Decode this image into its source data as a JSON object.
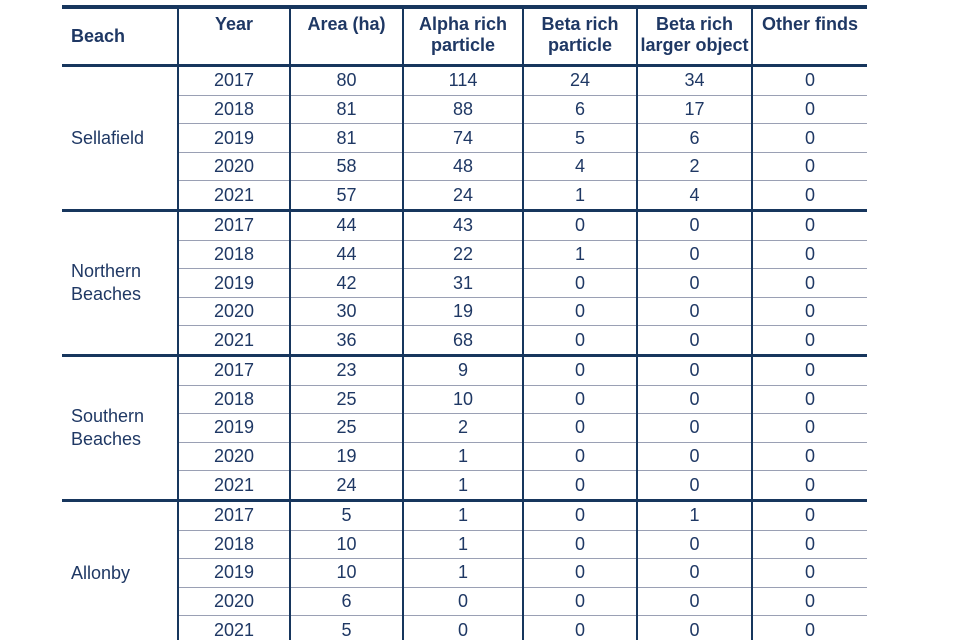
{
  "page": {
    "background": "#ffffff"
  },
  "colors": {
    "navy_border": "#17365d",
    "text_navy": "#1f3864",
    "row_separator": "#9aa0b4"
  },
  "table": {
    "columns": [
      "Beach",
      "Year",
      "Area (ha)",
      "Alpha rich particle",
      "Beta rich particle",
      "Beta rich larger object",
      "Other finds"
    ],
    "column_keys": [
      "beach",
      "year",
      "area-ha",
      "alpha-rich-particle",
      "beta-rich-particle",
      "beta-rich-larger-object",
      "other-finds"
    ],
    "groups": [
      {
        "beach": "Sellafield",
        "rows": [
          [
            "2017",
            "80",
            "114",
            "24",
            "34",
            "0"
          ],
          [
            "2018",
            "81",
            "88",
            "6",
            "17",
            "0"
          ],
          [
            "2019",
            "81",
            "74",
            "5",
            "6",
            "0"
          ],
          [
            "2020",
            "58",
            "48",
            "4",
            "2",
            "0"
          ],
          [
            "2021",
            "57",
            "24",
            "1",
            "4",
            "0"
          ]
        ]
      },
      {
        "beach": "Northern Beaches",
        "rows": [
          [
            "2017",
            "44",
            "43",
            "0",
            "0",
            "0"
          ],
          [
            "2018",
            "44",
            "22",
            "1",
            "0",
            "0"
          ],
          [
            "2019",
            "42",
            "31",
            "0",
            "0",
            "0"
          ],
          [
            "2020",
            "30",
            "19",
            "0",
            "0",
            "0"
          ],
          [
            "2021",
            "36",
            "68",
            "0",
            "0",
            "0"
          ]
        ]
      },
      {
        "beach": "Southern Beaches",
        "rows": [
          [
            "2017",
            "23",
            "9",
            "0",
            "0",
            "0"
          ],
          [
            "2018",
            "25",
            "10",
            "0",
            "0",
            "0"
          ],
          [
            "2019",
            "25",
            "2",
            "0",
            "0",
            "0"
          ],
          [
            "2020",
            "19",
            "1",
            "0",
            "0",
            "0"
          ],
          [
            "2021",
            "24",
            "1",
            "0",
            "0",
            "0"
          ]
        ]
      },
      {
        "beach": "Allonby",
        "rows": [
          [
            "2017",
            "5",
            "1",
            "0",
            "1",
            "0"
          ],
          [
            "2018",
            "10",
            "1",
            "0",
            "0",
            "0"
          ],
          [
            "2019",
            "10",
            "1",
            "0",
            "0",
            "0"
          ],
          [
            "2020",
            "6",
            "0",
            "0",
            "0",
            "0"
          ],
          [
            "2021",
            "5",
            "0",
            "0",
            "0",
            "0"
          ]
        ]
      }
    ]
  }
}
